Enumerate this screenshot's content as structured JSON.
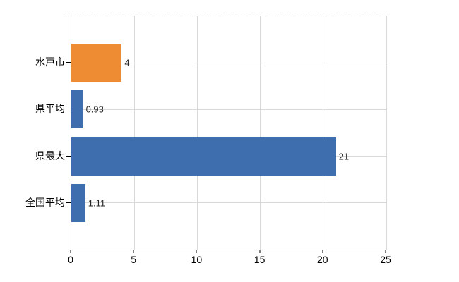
{
  "chart_data": {
    "type": "bar",
    "orientation": "horizontal",
    "categories": [
      "水戸市",
      "県平均",
      "県最大",
      "全国平均"
    ],
    "values": [
      4,
      0.93,
      21,
      1.11
    ],
    "value_labels": [
      "4",
      "0.93",
      "21",
      "1.11"
    ],
    "series": [
      {
        "name": "comparison",
        "values": [
          4,
          0.93,
          21,
          1.11
        ]
      }
    ],
    "bar_colors": [
      "#ED8C32",
      "#3E6EAD",
      "#3E6EAD",
      "#3E6EAD"
    ],
    "xlim": [
      0,
      25
    ],
    "x_ticks": [
      0,
      5,
      10,
      15,
      20,
      25
    ],
    "x_tick_labels": [
      "0",
      "5",
      "10",
      "15",
      "20",
      "25"
    ],
    "grid": true,
    "legend": "none",
    "gridline_color": "#D9D9D9",
    "axis_color": "#000000",
    "background_color": "#FFFFFF"
  }
}
